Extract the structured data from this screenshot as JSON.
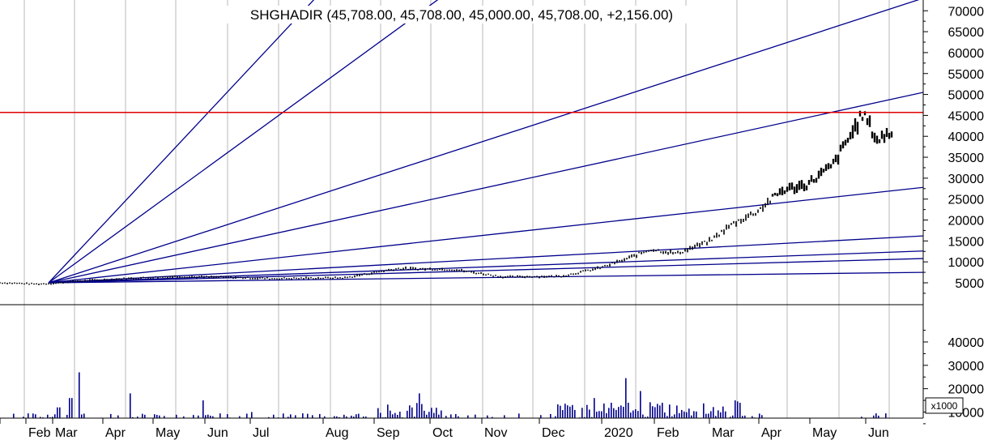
{
  "chart_data": [
    {
      "type": "candlestick",
      "title": "SHGHADIR (45,708.00, 45,708.00, 45,000.00, 45,708.00, +2,156.00)",
      "ohlc_last": {
        "open": 45708,
        "high": 45708,
        "low": 45000,
        "close": 45708,
        "change": 2156
      },
      "ylim": [
        2000,
        73000
      ],
      "y_ticks": [
        "70000",
        "65000",
        "60000",
        "55000",
        "50000",
        "45000",
        "40000",
        "35000",
        "30000",
        "25000",
        "20000",
        "15000",
        "10000",
        "5000"
      ],
      "y_tick_values": [
        70000,
        65000,
        60000,
        55000,
        50000,
        45000,
        40000,
        35000,
        30000,
        25000,
        20000,
        15000,
        10000,
        5000
      ],
      "x_ticks": [
        "Feb",
        "Mar",
        "Apr",
        "May",
        "Jun",
        "Jul",
        "Aug",
        "Sep",
        "Oct",
        "Nov",
        "Dec",
        "2020",
        "Feb",
        "Mar",
        "Apr",
        "May",
        "Jun"
      ],
      "grid": true,
      "price_curve": [
        {
          "m": -1.2,
          "v": 5000
        },
        {
          "m": -0.3,
          "v": 4700
        },
        {
          "m": 0.3,
          "v": 4900
        },
        {
          "m": 1.0,
          "v": 5400
        },
        {
          "m": 2.0,
          "v": 6000
        },
        {
          "m": 3.0,
          "v": 6500
        },
        {
          "m": 4.0,
          "v": 6300
        },
        {
          "m": 5.0,
          "v": 6000
        },
        {
          "m": 6.0,
          "v": 6200
        },
        {
          "m": 7.0,
          "v": 8400
        },
        {
          "m": 8.0,
          "v": 8200
        },
        {
          "m": 9.0,
          "v": 6400
        },
        {
          "m": 10.0,
          "v": 6600
        },
        {
          "m": 10.6,
          "v": 8500
        },
        {
          "m": 11.0,
          "v": 10500
        },
        {
          "m": 11.5,
          "v": 13000
        },
        {
          "m": 12.0,
          "v": 12000
        },
        {
          "m": 12.6,
          "v": 15000
        },
        {
          "m": 13.0,
          "v": 19000
        },
        {
          "m": 13.5,
          "v": 22000
        },
        {
          "m": 14.0,
          "v": 27000
        },
        {
          "m": 14.5,
          "v": 28500
        },
        {
          "m": 15.0,
          "v": 33000
        },
        {
          "m": 15.4,
          "v": 42000
        },
        {
          "m": 15.55,
          "v": 45500
        },
        {
          "m": 15.8,
          "v": 39000
        },
        {
          "m": 16.2,
          "v": 42500
        },
        {
          "m": 16.6,
          "v": 37000
        },
        {
          "m": 17.0,
          "v": 33500
        },
        {
          "m": 17.4,
          "v": 38500
        },
        {
          "m": 17.7,
          "v": 41000
        },
        {
          "m": 18.0,
          "v": 45708
        }
      ],
      "horizontal_line": {
        "value": 45708,
        "color": "#e00000"
      },
      "gann_fan": {
        "origin": {
          "month": 0.0,
          "value": 5000
        },
        "end_values_at_right_edge": [
          228000,
          157000,
          73000,
          50500,
          27800,
          16200,
          12600,
          10800,
          7500
        ],
        "color": "#00008b"
      },
      "candle_color": "#000000",
      "fan_color": "#00008b"
    },
    {
      "type": "bar",
      "name": "volume",
      "multiplier_label": "x1000",
      "ylim": [
        0,
        48000
      ],
      "y_ticks": [
        "40000",
        "30000",
        "20000",
        "10000"
      ],
      "y_tick_values": [
        40000,
        30000,
        20000,
        10000
      ],
      "peaks": [
        {
          "m": 0.35,
          "v": 12000
        },
        {
          "m": 0.8,
          "v": 16000
        },
        {
          "m": 1.05,
          "v": 27000
        },
        {
          "m": 2.1,
          "v": 18000
        },
        {
          "m": 3.5,
          "v": 15000
        },
        {
          "m": 4.5,
          "v": 10000
        },
        {
          "m": 7.4,
          "v": 18000
        },
        {
          "m": 10.5,
          "v": 16000
        },
        {
          "m": 11.0,
          "v": 24500
        },
        {
          "m": 11.3,
          "v": 19000
        },
        {
          "m": 15.5,
          "v": 8000
        },
        {
          "m": 17.9,
          "v": 15000
        }
      ],
      "color": "#00008b"
    }
  ]
}
